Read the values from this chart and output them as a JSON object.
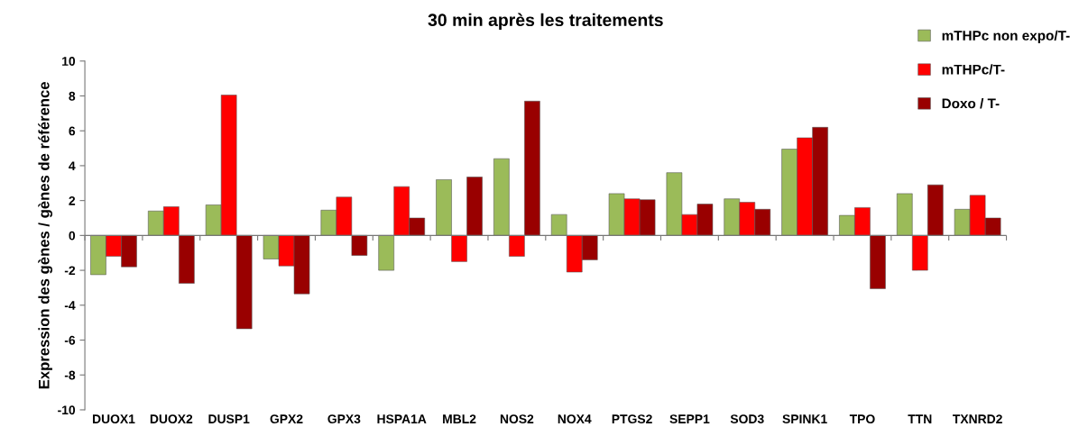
{
  "chart_data": {
    "type": "bar",
    "title": "30 min après les traitements",
    "ylabel": "Expression des gènes / gènes de référence",
    "categories": [
      "DUOX1",
      "DUOX2",
      "DUSP1",
      "GPX2",
      "GPX3",
      "HSPA1A",
      "MBL2",
      "NOS2",
      "NOX4",
      "PTGS2",
      "SEPP1",
      "SOD3",
      "SPINK1",
      "TPO",
      "TTN",
      "TXNRD2"
    ],
    "series": [
      {
        "name": "mTHPc non expo/T-",
        "color": "#9bbb59",
        "values": [
          -2.25,
          1.4,
          1.75,
          -1.35,
          1.45,
          -2.0,
          3.2,
          4.4,
          1.2,
          2.4,
          3.6,
          2.1,
          4.95,
          1.15,
          2.4,
          1.5
        ]
      },
      {
        "name": "mTHPc/T-",
        "color": "#ff0000",
        "values": [
          -1.2,
          1.65,
          8.05,
          -1.75,
          2.2,
          2.8,
          -1.5,
          -1.2,
          -2.1,
          2.1,
          1.2,
          1.9,
          5.6,
          1.6,
          -2.0,
          2.3
        ]
      },
      {
        "name": "Doxo / T-",
        "color": "#990000",
        "values": [
          -1.8,
          -2.75,
          -5.35,
          -3.35,
          -1.15,
          1.0,
          3.35,
          7.7,
          -1.4,
          2.05,
          1.8,
          1.5,
          6.2,
          -3.05,
          2.9,
          1.0
        ]
      }
    ],
    "ylim": [
      -10,
      10
    ],
    "yticks": [
      -10,
      -8,
      -6,
      -4,
      -2,
      0,
      2,
      4,
      6,
      8,
      10
    ],
    "grid": false,
    "ref_lines": [
      {
        "axis": "y",
        "value": 0,
        "color": "#777777"
      }
    ],
    "legend": "top right"
  }
}
